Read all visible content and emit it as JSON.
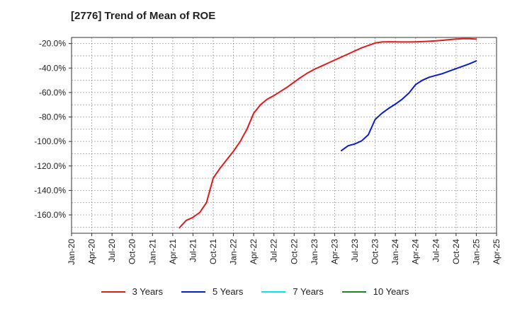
{
  "chart_data": {
    "type": "line",
    "title": "[2776]  Trend of Mean of ROE",
    "xlabel": "",
    "ylabel": "",
    "x_ticks": [
      "Jan-20",
      "Apr-20",
      "Jul-20",
      "Oct-20",
      "Jan-21",
      "Apr-21",
      "Jul-21",
      "Oct-21",
      "Jan-22",
      "Apr-22",
      "Jul-22",
      "Oct-22",
      "Jan-23",
      "Apr-23",
      "Jul-23",
      "Oct-23",
      "Jan-24",
      "Apr-24",
      "Jul-24",
      "Oct-24",
      "Jan-25",
      "Apr-25"
    ],
    "y_ticks": [
      "-20.0%",
      "-40.0%",
      "-60.0%",
      "-80.0%",
      "-100.0%",
      "-120.0%",
      "-140.0%",
      "-160.0%"
    ],
    "y_tick_values": [
      -20,
      -40,
      -60,
      -80,
      -100,
      -120,
      -140,
      -160
    ],
    "ylim": [
      -175,
      -15
    ],
    "grid": true,
    "legend_position": "bottom",
    "series": [
      {
        "name": "3 Years",
        "color": "#e31a1c",
        "points": [
          [
            "May-21",
            -170.5
          ],
          [
            "Jun-21",
            -164.5
          ],
          [
            "Jul-21",
            -162
          ],
          [
            "Aug-21",
            -158
          ],
          [
            "Sep-21",
            -150
          ],
          [
            "Oct-21",
            -130
          ],
          [
            "Nov-21",
            -122
          ],
          [
            "Dec-21",
            -115
          ],
          [
            "Jan-22",
            -108
          ],
          [
            "Feb-22",
            -100
          ],
          [
            "Mar-22",
            -90
          ],
          [
            "Apr-22",
            -77
          ],
          [
            "May-22",
            -70
          ],
          [
            "Jun-22",
            -65.5
          ],
          [
            "Jul-22",
            -62.5
          ],
          [
            "Aug-22",
            -59
          ],
          [
            "Sep-22",
            -55.5
          ],
          [
            "Oct-22",
            -51.5
          ],
          [
            "Nov-22",
            -47.5
          ],
          [
            "Dec-22",
            -44
          ],
          [
            "Jan-23",
            -41
          ],
          [
            "Feb-23",
            -38.5
          ],
          [
            "Mar-23",
            -36
          ],
          [
            "Apr-23",
            -33.5
          ],
          [
            "May-23",
            -31
          ],
          [
            "Jun-23",
            -28.5
          ],
          [
            "Jul-23",
            -26
          ],
          [
            "Aug-23",
            -23.5
          ],
          [
            "Sep-23",
            -21.5
          ],
          [
            "Oct-23",
            -19.5
          ],
          [
            "Nov-23",
            -18.7
          ],
          [
            "Dec-23",
            -18.5
          ],
          [
            "Jan-24",
            -18.6
          ],
          [
            "Feb-24",
            -18.7
          ],
          [
            "Mar-24",
            -18.7
          ],
          [
            "Apr-24",
            -18.6
          ],
          [
            "May-24",
            -18.4
          ],
          [
            "Jun-24",
            -18.1
          ],
          [
            "Jul-24",
            -17.8
          ],
          [
            "Aug-24",
            -17.3
          ],
          [
            "Sep-24",
            -16.8
          ],
          [
            "Oct-24",
            -16.3
          ],
          [
            "Nov-24",
            -16
          ],
          [
            "Dec-24",
            -16
          ],
          [
            "Jan-25",
            -16.4
          ]
        ]
      },
      {
        "name": "5 Years",
        "color": "#0a1bd6",
        "points": [
          [
            "May-23",
            -107.5
          ],
          [
            "Jun-23",
            -103.5
          ],
          [
            "Jul-23",
            -102
          ],
          [
            "Aug-23",
            -99.5
          ],
          [
            "Sep-23",
            -94.5
          ],
          [
            "Oct-23",
            -82
          ],
          [
            "Nov-23",
            -77
          ],
          [
            "Dec-23",
            -73
          ],
          [
            "Jan-24",
            -69.5
          ],
          [
            "Feb-24",
            -65.5
          ],
          [
            "Mar-24",
            -60.5
          ],
          [
            "Apr-24",
            -53.5
          ],
          [
            "May-24",
            -50
          ],
          [
            "Jun-24",
            -47.5
          ],
          [
            "Jul-24",
            -46
          ],
          [
            "Aug-24",
            -44.5
          ],
          [
            "Sep-24",
            -42.5
          ],
          [
            "Oct-24",
            -40.5
          ],
          [
            "Nov-24",
            -38.5
          ],
          [
            "Dec-24",
            -36.5
          ],
          [
            "Jan-25",
            -34.2
          ]
        ]
      },
      {
        "name": "7 Years",
        "color": "#00e5ee",
        "points": []
      },
      {
        "name": "10 Years",
        "color": "#1a8a1a",
        "points": []
      }
    ]
  }
}
